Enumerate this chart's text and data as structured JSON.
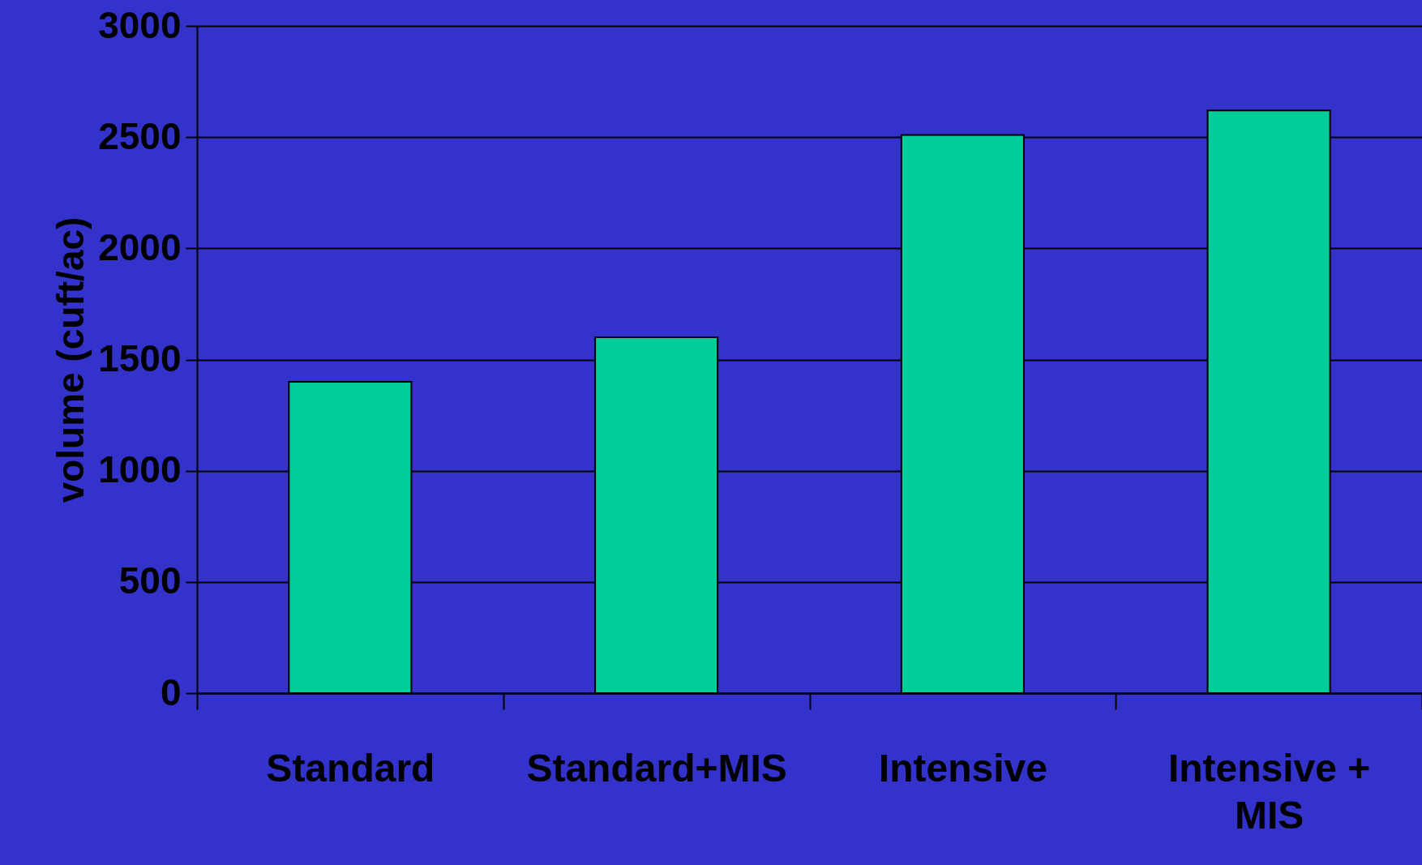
{
  "chart_data": {
    "type": "bar",
    "ylabel": "volume (cuft/ac)",
    "categories": [
      "Standard",
      "Standard+MIS",
      "Intensive",
      "Intensive + MIS"
    ],
    "values": [
      1400,
      1600,
      2510,
      2620
    ],
    "color": "#00cc99",
    "ylim": [
      0,
      3000
    ],
    "yticks": [
      0,
      500,
      1000,
      1500,
      2000,
      2500,
      3000
    ],
    "grid": "y"
  }
}
